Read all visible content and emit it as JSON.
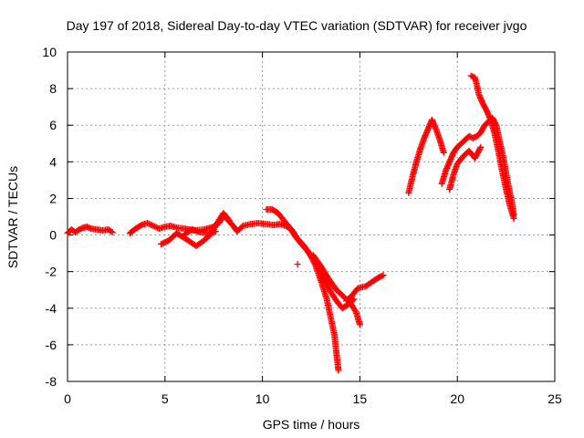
{
  "chart_data": {
    "type": "scatter",
    "title": "Day 197 of 2018, Sidereal Day-to-day VTEC variation (SDTVAR) for receiver jvgo",
    "xlabel": "GPS time / hours",
    "ylabel": "SDTVAR / TECUs",
    "xlim": [
      0,
      25
    ],
    "ylim": [
      -8,
      10
    ],
    "x_ticks": [
      0,
      5,
      10,
      15,
      20,
      25
    ],
    "y_ticks": [
      -8,
      -6,
      -4,
      -2,
      0,
      2,
      4,
      6,
      8,
      10
    ],
    "grid": true,
    "marker": "plus",
    "colors": {
      "series": "#ff0000",
      "grid": "#999999",
      "axis": "#000000"
    },
    "series": [
      {
        "segments": [
          [
            [
              0.0,
              0.1
            ],
            [
              0.2,
              0.3
            ],
            [
              0.4,
              0.15
            ],
            [
              0.6,
              0.3
            ],
            [
              0.8,
              0.4
            ],
            [
              1.0,
              0.45
            ],
            [
              1.2,
              0.35
            ],
            [
              1.5,
              0.3
            ],
            [
              1.8,
              0.25
            ],
            [
              2.1,
              0.3
            ],
            [
              2.3,
              0.15
            ]
          ],
          [
            [
              3.2,
              0.1
            ],
            [
              3.5,
              0.35
            ],
            [
              3.8,
              0.55
            ],
            [
              4.1,
              0.65
            ],
            [
              4.4,
              0.5
            ],
            [
              4.7,
              0.35
            ],
            [
              5.0,
              0.45
            ],
            [
              5.3,
              0.5
            ],
            [
              5.6,
              0.4
            ],
            [
              6.0,
              0.35
            ],
            [
              6.5,
              0.25
            ],
            [
              7.0,
              0.3
            ],
            [
              7.5,
              0.45
            ],
            [
              7.8,
              0.7
            ],
            [
              8.0,
              1.1
            ],
            [
              8.2,
              0.85
            ],
            [
              8.5,
              0.5
            ],
            [
              8.7,
              0.2
            ],
            [
              9.0,
              0.5
            ],
            [
              9.4,
              0.6
            ],
            [
              9.8,
              0.65
            ],
            [
              10.2,
              0.6
            ],
            [
              10.6,
              0.55
            ],
            [
              10.9,
              0.6
            ],
            [
              11.2,
              0.5
            ],
            [
              11.5,
              0.3
            ],
            [
              11.8,
              -0.2
            ],
            [
              12.1,
              -0.55
            ],
            [
              12.4,
              -1.0
            ],
            [
              12.7,
              -1.6
            ],
            [
              13.0,
              -2.5
            ],
            [
              13.3,
              -3.5
            ],
            [
              13.5,
              -4.5
            ],
            [
              13.7,
              -5.5
            ],
            [
              13.8,
              -6.5
            ],
            [
              13.9,
              -7.4
            ]
          ],
          [
            [
              4.8,
              -0.5
            ],
            [
              5.2,
              -0.3
            ],
            [
              5.6,
              0.1
            ],
            [
              5.9,
              -0.1
            ],
            [
              6.2,
              -0.3
            ],
            [
              6.6,
              -0.6
            ],
            [
              7.0,
              -0.3
            ],
            [
              7.4,
              0.1
            ],
            [
              7.7,
              0.7
            ],
            [
              8.0,
              1.2
            ],
            [
              8.3,
              0.8
            ]
          ],
          [
            [
              6.0,
              0.05
            ],
            [
              6.4,
              0.3
            ],
            [
              6.8,
              0.15
            ],
            [
              7.2,
              0.1
            ],
            [
              7.6,
              0.2
            ]
          ],
          [
            [
              10.2,
              1.4
            ],
            [
              10.5,
              1.4
            ],
            [
              10.8,
              1.2
            ],
            [
              11.1,
              0.8
            ],
            [
              11.4,
              0.4
            ],
            [
              11.7,
              -0.1
            ],
            [
              12.0,
              -0.5
            ],
            [
              12.3,
              -0.85
            ],
            [
              12.6,
              -1.3
            ],
            [
              12.9,
              -1.85
            ],
            [
              13.2,
              -2.5
            ],
            [
              13.5,
              -3.1
            ],
            [
              13.8,
              -3.6
            ],
            [
              14.1,
              -4.0
            ],
            [
              14.4,
              -3.8
            ],
            [
              14.7,
              -3.5
            ]
          ],
          [
            [
              11.8,
              -1.6
            ]
          ],
          [
            [
              12.6,
              -1.1
            ],
            [
              13.0,
              -1.7
            ],
            [
              13.4,
              -2.4
            ],
            [
              13.8,
              -3.0
            ],
            [
              14.2,
              -3.4
            ],
            [
              14.5,
              -3.7
            ],
            [
              14.8,
              -4.2
            ],
            [
              15.0,
              -4.9
            ]
          ],
          [
            [
              14.3,
              -3.6
            ],
            [
              14.6,
              -3.3
            ],
            [
              14.9,
              -2.9
            ],
            [
              15.3,
              -2.8
            ],
            [
              15.7,
              -2.5
            ],
            [
              16.0,
              -2.3
            ],
            [
              16.2,
              -2.2
            ]
          ],
          [
            [
              17.5,
              2.3
            ],
            [
              17.7,
              3.2
            ],
            [
              17.9,
              4.0
            ],
            [
              18.1,
              4.7
            ],
            [
              18.3,
              5.3
            ],
            [
              18.5,
              5.8
            ],
            [
              18.7,
              6.3
            ],
            [
              18.9,
              5.8
            ],
            [
              19.1,
              5.2
            ],
            [
              19.3,
              4.5
            ]
          ],
          [
            [
              19.2,
              2.8
            ],
            [
              19.4,
              3.5
            ],
            [
              19.6,
              4.0
            ],
            [
              19.8,
              4.5
            ],
            [
              20.0,
              4.8
            ],
            [
              20.2,
              5.0
            ],
            [
              20.4,
              5.2
            ],
            [
              20.6,
              5.4
            ],
            [
              20.8,
              5.3
            ],
            [
              21.0,
              5.4
            ],
            [
              21.2,
              5.6
            ],
            [
              21.4,
              6.0
            ],
            [
              21.6,
              6.2
            ],
            [
              21.8,
              6.4
            ],
            [
              22.0,
              6.0
            ],
            [
              22.2,
              5.0
            ],
            [
              22.4,
              4.0
            ],
            [
              22.6,
              2.8
            ],
            [
              22.8,
              1.8
            ],
            [
              22.9,
              1.1
            ]
          ],
          [
            [
              19.6,
              2.5
            ],
            [
              19.8,
              3.3
            ],
            [
              20.0,
              3.9
            ],
            [
              20.3,
              4.3
            ],
            [
              20.6,
              4.6
            ],
            [
              20.9,
              4.2
            ],
            [
              21.2,
              4.8
            ]
          ],
          [
            [
              20.7,
              8.7
            ],
            [
              20.9,
              8.6
            ],
            [
              21.0,
              8.2
            ],
            [
              21.1,
              7.7
            ],
            [
              21.3,
              7.2
            ],
            [
              21.5,
              6.8
            ],
            [
              21.7,
              6.3
            ],
            [
              21.9,
              5.6
            ],
            [
              22.1,
              4.6
            ],
            [
              22.3,
              3.5
            ],
            [
              22.5,
              2.5
            ],
            [
              22.7,
              1.6
            ],
            [
              22.9,
              0.9
            ]
          ]
        ]
      }
    ]
  }
}
